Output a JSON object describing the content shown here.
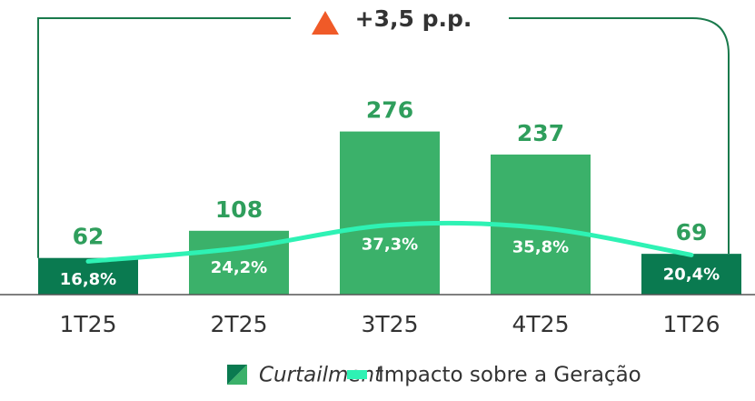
{
  "chart_data": {
    "type": "bar",
    "annotation": "+3,5 p.p.",
    "categories": [
      "1T25",
      "2T25",
      "3T25",
      "4T25",
      "1T26"
    ],
    "series": [
      {
        "name": "Curtailment",
        "type": "bar",
        "color": "#3bb16a",
        "colors": [
          "#0a7a50",
          "#3bb16a",
          "#3bb16a",
          "#3bb16a",
          "#0a7a50"
        ],
        "label_color": "#2f9e5c",
        "values": [
          62,
          108,
          276,
          237,
          69
        ]
      },
      {
        "name": "Impacto sobre a Geração",
        "type": "line",
        "axis": "y2",
        "color": "#2ef2b4",
        "values": [
          16.8,
          24.2,
          37.3,
          35.8,
          20.4
        ],
        "value_labels": [
          "16,8%",
          "24,2%",
          "37,3%",
          "35,8%",
          "20,4%"
        ]
      }
    ],
    "ylim": [
      0,
      440
    ],
    "y2lim": [
      -2,
      145
    ],
    "annotation_color": "#f05a28",
    "frame_color": "#1a7a4c"
  }
}
